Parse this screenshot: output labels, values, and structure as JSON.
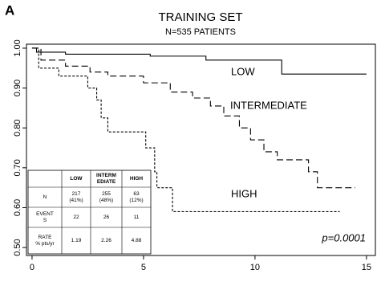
{
  "panel_label": "A",
  "chart_data": {
    "type": "step",
    "title": "TRAINING SET",
    "subtitle": "N=535 PATIENTS",
    "xlim": [
      -0.25,
      15.4
    ],
    "ylim": [
      0.48,
      1.01
    ],
    "xticks": [
      0,
      5,
      10,
      15
    ],
    "yticks": [
      {
        "value": 0.5,
        "label": "0.50"
      },
      {
        "value": 0.6,
        "label": "0.60"
      },
      {
        "value": 0.7,
        "label": "0.70"
      },
      {
        "value": 0.8,
        "label": "0.80"
      },
      {
        "value": 0.9,
        "label": "0.90"
      },
      {
        "value": 1.0,
        "label": "1.00"
      }
    ],
    "series": [
      {
        "name": "LOW",
        "color": "#000000",
        "style": "solid",
        "x": [
          0,
          0.2,
          1.5,
          5.3,
          7.8,
          11.2,
          15.0
        ],
        "values": [
          1.0,
          0.99,
          0.985,
          0.98,
          0.97,
          0.935,
          0.935
        ]
      },
      {
        "name": "INTERMEDIATE",
        "color": "#000000",
        "style": "dashed",
        "x": [
          0,
          0.4,
          1.5,
          2.6,
          3.4,
          5.0,
          6.2,
          7.2,
          8.0,
          8.6,
          9.3,
          9.8,
          10.4,
          11.0,
          12.4,
          12.8,
          14.5
        ],
        "values": [
          1.0,
          0.97,
          0.955,
          0.94,
          0.93,
          0.913,
          0.89,
          0.875,
          0.855,
          0.83,
          0.8,
          0.77,
          0.74,
          0.72,
          0.69,
          0.65,
          0.65
        ]
      },
      {
        "name": "HIGH",
        "color": "#000000",
        "style": "dotted",
        "x": [
          0,
          0.3,
          1.2,
          2.5,
          2.9,
          3.1,
          3.4,
          5.1,
          5.5,
          5.6,
          6.3,
          13.8
        ],
        "values": [
          1.0,
          0.95,
          0.93,
          0.9,
          0.87,
          0.825,
          0.79,
          0.75,
          0.69,
          0.65,
          0.59,
          0.59
        ]
      }
    ],
    "annotation": "p=0.0001",
    "table": {
      "columns": [
        [
          "LOW"
        ],
        [
          "INTERM",
          "EDIATE"
        ],
        [
          "HIGH"
        ]
      ],
      "rows": [
        {
          "label": [
            "N"
          ],
          "cells": [
            [
              "217",
              "(41%)"
            ],
            [
              "255",
              "(48%)"
            ],
            [
              "63",
              "(12%)"
            ]
          ]
        },
        {
          "label": [
            "EVENT",
            "S"
          ],
          "cells": [
            [
              "22"
            ],
            [
              "26"
            ],
            [
              "11"
            ]
          ]
        },
        {
          "label": [
            "RATE",
            "% pts/yr"
          ],
          "cells": [
            [
              "1.19"
            ],
            [
              "2.26"
            ],
            [
              "4.88"
            ]
          ]
        }
      ]
    }
  }
}
